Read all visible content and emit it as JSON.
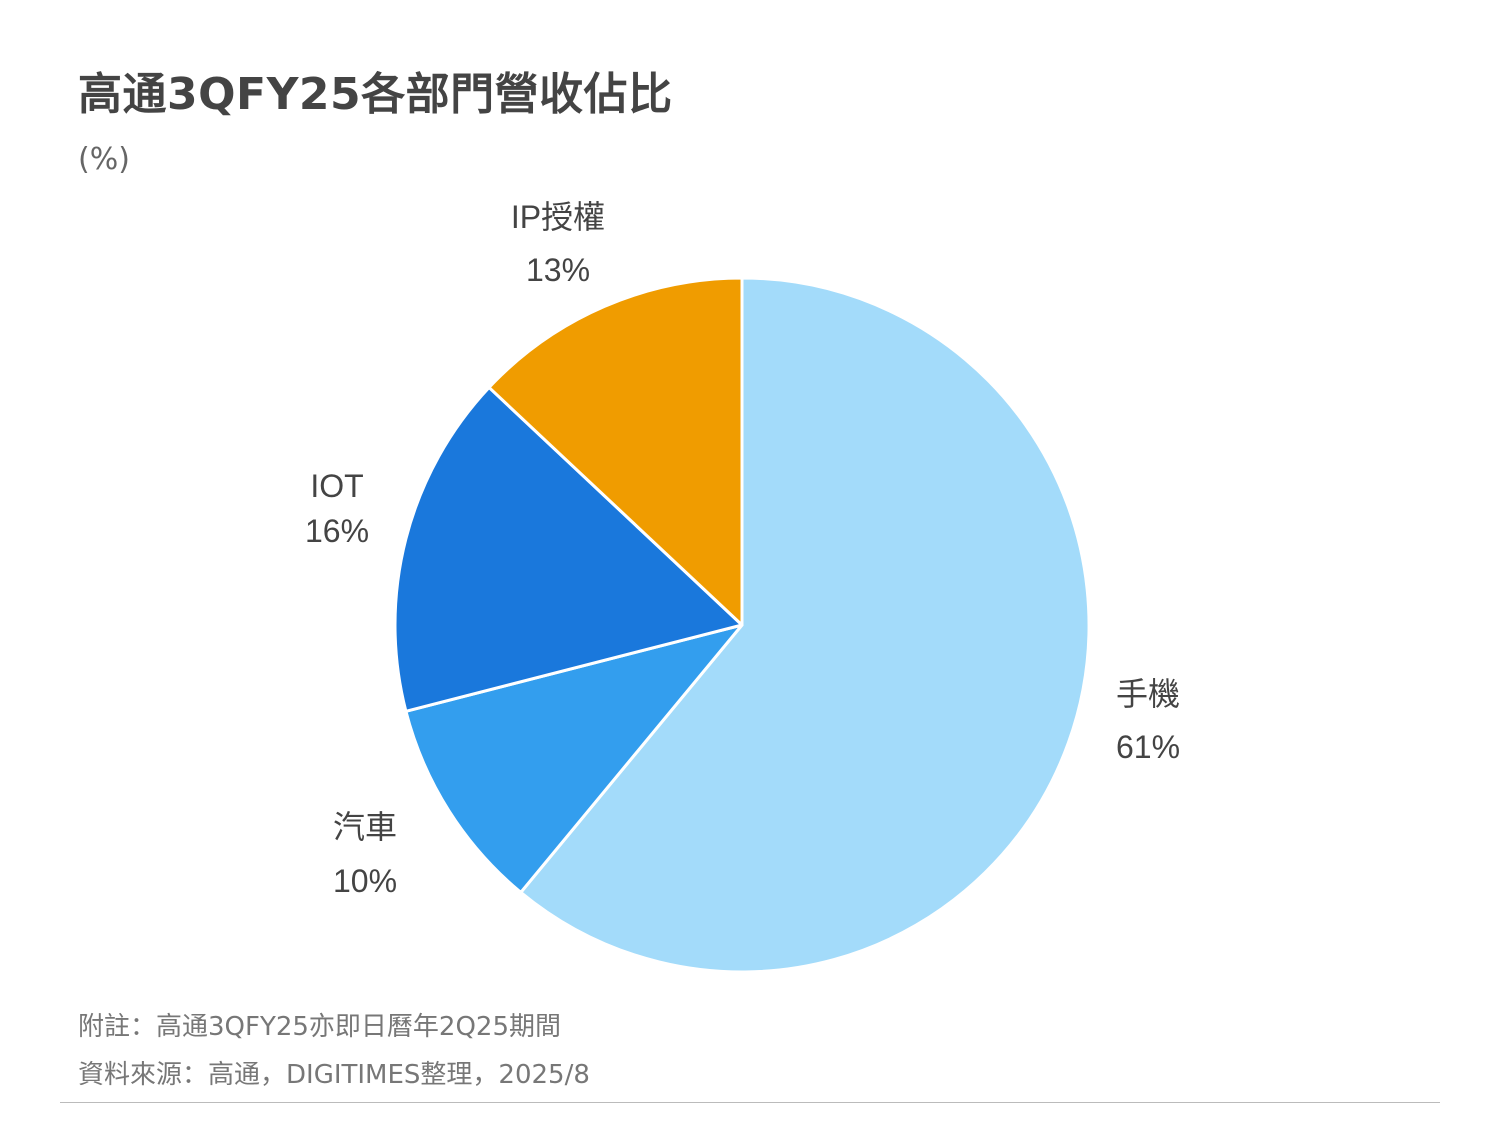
{
  "header": {
    "title": "高通3QFY25各部門營收佔比",
    "unit": "(%)"
  },
  "chart_data": {
    "type": "pie",
    "title": "高通3QFY25各部門營收佔比",
    "unit": "(%)",
    "slices": [
      {
        "label": "手機",
        "value": 61,
        "value_label": "61%",
        "color": "#a3dbfa"
      },
      {
        "label": "汽車",
        "value": 10,
        "value_label": "10%",
        "color": "#339eee"
      },
      {
        "label": "IOT",
        "value": 16,
        "value_label": "16%",
        "color": "#1a78dc"
      },
      {
        "label": "IP授權",
        "value": 13,
        "value_label": "13%",
        "color": "#f09c00"
      }
    ],
    "start": "12 o'clock",
    "direction": "clockwise"
  },
  "footer": {
    "note": "附註：高通3QFY25亦即日曆年2Q25期間",
    "source": "資料來源：高通，DIGITIMES整理，2025/8"
  }
}
